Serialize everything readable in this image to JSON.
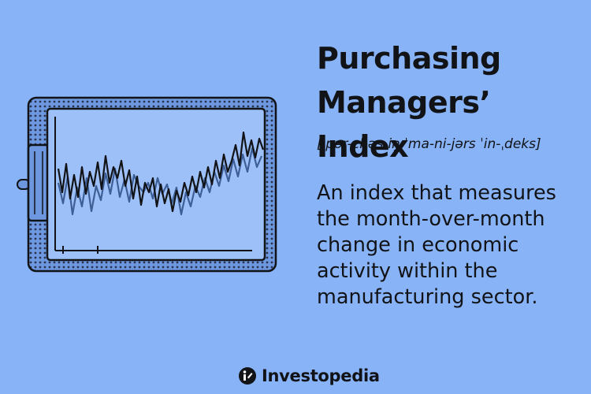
{
  "title": "Purchasing\nManagers’ Index",
  "pronunciation": "[ˈpər-chəs-iŋ ˈma-ni-jərs ˈin-ˌdeks]",
  "definition": "An index that measures\nthe month-over-month\nchange in economic\nactivity within the\nmanufacturing sector.",
  "brand": {
    "name": "Investopedia",
    "icon": "investopedia-logo-icon"
  },
  "colors": {
    "background": "#88b3f7",
    "ink": "#111316",
    "screen": "#9ec0f8",
    "bezel": "#6d98e0"
  },
  "illustration": {
    "icon": "tablet-line-chart-icon"
  }
}
